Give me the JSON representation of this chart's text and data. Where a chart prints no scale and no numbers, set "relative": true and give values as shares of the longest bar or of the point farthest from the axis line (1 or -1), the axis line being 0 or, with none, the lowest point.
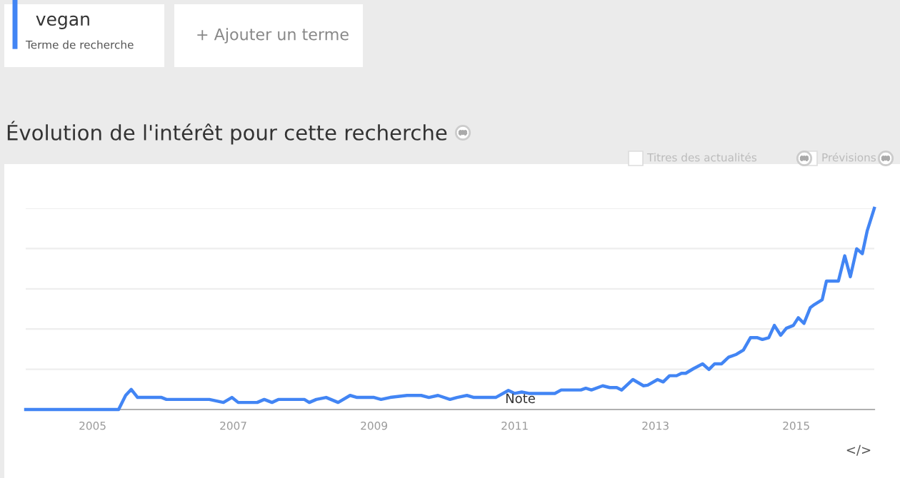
{
  "chart_data": {
    "type": "line",
    "title": "Évolution de l'intérêt pour cette recherche",
    "relative": true,
    "grid": "y",
    "legend": "top left",
    "tick_labels": "x",
    "xlim": [
      2004.05,
      2016.11
    ],
    "xticks": [
      2005,
      2007,
      2009,
      2011,
      2013,
      2015
    ],
    "x": [
      2004.05,
      2005.37,
      2005.47,
      2005.55,
      2005.64,
      2005.98,
      2006.05,
      2006.66,
      2006.86,
      2006.98,
      2007.07,
      2007.34,
      2007.44,
      2007.55,
      2007.64,
      2008.01,
      2008.08,
      2008.18,
      2008.32,
      2008.49,
      2008.66,
      2008.76,
      2009.0,
      2009.1,
      2009.23,
      2009.47,
      2009.67,
      2009.78,
      2009.91,
      2010.08,
      2010.18,
      2010.32,
      2010.42,
      2010.73,
      2010.91,
      2011.0,
      2011.1,
      2011.2,
      2011.57,
      2011.66,
      2011.94,
      2012.01,
      2012.09,
      2012.25,
      2012.35,
      2012.45,
      2012.52,
      2012.68,
      2012.83,
      2012.89,
      2013.03,
      2013.11,
      2013.2,
      2013.3,
      2013.37,
      2013.43,
      2013.54,
      2013.67,
      2013.76,
      2013.84,
      2013.94,
      2014.04,
      2014.15,
      2014.25,
      2014.35,
      2014.45,
      2014.52,
      2014.61,
      2014.69,
      2014.78,
      2014.86,
      2014.96,
      2015.03,
      2015.11,
      2015.2,
      2015.26,
      2015.37,
      2015.43,
      2015.6,
      2015.69,
      2015.77,
      2015.86,
      2015.94,
      2016.01,
      2016.11
    ],
    "series": [
      {
        "name": "vegan",
        "color": "#4285f4",
        "values": [
          0,
          0,
          0.07,
          0.1,
          0.06,
          0.06,
          0.05,
          0.05,
          0.035,
          0.06,
          0.035,
          0.035,
          0.05,
          0.035,
          0.05,
          0.05,
          0.035,
          0.05,
          0.06,
          0.035,
          0.07,
          0.06,
          0.06,
          0.05,
          0.06,
          0.07,
          0.07,
          0.06,
          0.07,
          0.05,
          0.06,
          0.07,
          0.06,
          0.06,
          0.095,
          0.08,
          0.087,
          0.08,
          0.08,
          0.097,
          0.097,
          0.106,
          0.097,
          0.118,
          0.109,
          0.109,
          0.097,
          0.149,
          0.118,
          0.121,
          0.149,
          0.137,
          0.168,
          0.168,
          0.18,
          0.18,
          0.203,
          0.227,
          0.199,
          0.227,
          0.227,
          0.26,
          0.274,
          0.296,
          0.357,
          0.357,
          0.348,
          0.357,
          0.418,
          0.369,
          0.404,
          0.418,
          0.456,
          0.428,
          0.506,
          0.522,
          0.546,
          0.638,
          0.638,
          0.764,
          0.66,
          0.799,
          0.775,
          0.889,
          1.0
        ]
      }
    ],
    "annotations": [
      "Terme de recherche",
      "+ Ajouter un terme",
      "Titres des actualités",
      "Prévisions",
      "</>",
      {
        "text": "Note",
        "x": 2011.08,
        "y": 0.05
      }
    ]
  }
}
